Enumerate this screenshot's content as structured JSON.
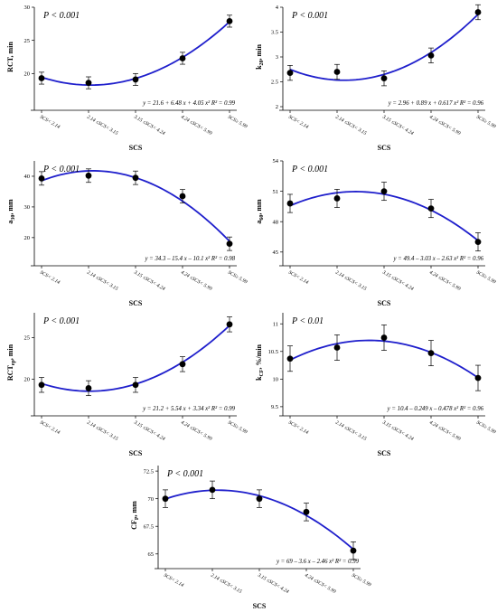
{
  "colors": {
    "fit_line": "#1f1fcc",
    "points": "#000000",
    "axis": "#000000"
  },
  "chart_data": [
    {
      "type": "scatter",
      "fit": "quadratic",
      "ylabel": "RCT, min",
      "xlabel": "SCS",
      "categories": [
        "SCS< 2.14",
        "2.14 ≤SCS< 3.15",
        "3.15 ≤SCS< 4.24",
        "4.24 ≤SCS< 5.99",
        "SCS≥ 5.99"
      ],
      "values": [
        19.3,
        18.6,
        19.1,
        22.3,
        27.9
      ],
      "errors": [
        0.9,
        0.9,
        0.9,
        0.9,
        0.9
      ],
      "fit_coeffs": [
        21.6,
        6.48,
        4.05
      ],
      "ylim": [
        15,
        30
      ],
      "yticks": [
        20,
        25,
        30
      ],
      "p_value": "P < 0.001",
      "equation": "y = 21.6 + 6.48 x + 4.05 x² R² = 0.99"
    },
    {
      "type": "scatter",
      "fit": "quadratic",
      "ylabel": "k20, min",
      "xlabel": "SCS",
      "categories": [
        "SCS< 2.14",
        "2.14 ≤SCS< 3.15",
        "3.15 ≤SCS< 4.24",
        "4.24 ≤SCS< 5.99",
        "SCS≥ 5.99"
      ],
      "values": [
        2.68,
        2.7,
        2.57,
        3.03,
        3.9
      ],
      "errors": [
        0.15,
        0.15,
        0.15,
        0.15,
        0.15
      ],
      "fit_coeffs": [
        2.96,
        0.89,
        0.617
      ],
      "ylim": [
        2.0,
        4.0
      ],
      "yticks": [
        2.0,
        2.5,
        3.0,
        3.5,
        4.0
      ],
      "p_value": "P < 0.001",
      "equation": "y = 2.96 + 0.89 x + 0.617 x² R² = 0.96"
    },
    {
      "type": "scatter",
      "fit": "quadratic",
      "ylabel": "a30, mm",
      "xlabel": "SCS",
      "categories": [
        "SCS< 2.14",
        "2.14 ≤SCS< 3.15",
        "3.15 ≤SCS< 4.24",
        "4.24 ≤SCS< 5.99",
        "SCS≥ 5.99"
      ],
      "values": [
        39.3,
        40.2,
        39.5,
        33.5,
        18.0
      ],
      "errors": [
        2.2,
        2.2,
        2.2,
        2.2,
        2.2
      ],
      "fit_coeffs": [
        34.3,
        -15.4,
        -10.1
      ],
      "ylim": [
        12,
        45
      ],
      "yticks": [
        20,
        30,
        40
      ],
      "p_value": "P < 0.001",
      "equation": "y = 34.3 – 15.4 x – 10.1 x² R² = 0.98"
    },
    {
      "type": "scatter",
      "fit": "quadratic",
      "ylabel": "a60, mm",
      "xlabel": "SCS",
      "categories": [
        "SCS< 2.14",
        "2.14 ≤SCS< 3.15",
        "3.15 ≤SCS< 4.24",
        "4.24 ≤SCS< 5.99",
        "SCS≥ 5.99"
      ],
      "values": [
        49.8,
        50.3,
        51.0,
        49.3,
        46.0
      ],
      "errors": [
        0.9,
        0.9,
        0.9,
        0.9,
        0.9
      ],
      "fit_coeffs": [
        49.4,
        -3.03,
        -2.63
      ],
      "ylim": [
        44,
        54
      ],
      "yticks": [
        45,
        48,
        51,
        54
      ],
      "p_value": "P < 0.001",
      "equation": "y = 49.4 – 3.03 x – 2.63 x² R² = 0.96"
    },
    {
      "type": "scatter",
      "fit": "quadratic",
      "ylabel": "RCTep, min",
      "xlabel": "SCS",
      "categories": [
        "SCS< 2.14",
        "2.14 ≤SCS< 3.15",
        "3.15 ≤SCS< 4.24",
        "4.24 ≤SCS< 5.99",
        "SCS≥ 5.99"
      ],
      "values": [
        19.3,
        18.9,
        19.3,
        21.8,
        26.6
      ],
      "errors": [
        0.9,
        0.9,
        0.9,
        0.9,
        0.9
      ],
      "fit_coeffs": [
        21.2,
        5.54,
        3.34
      ],
      "ylim": [
        16,
        28
      ],
      "yticks": [
        20,
        25
      ],
      "p_value": "P < 0.001",
      "equation": "y = 21.2 + 5.54 x + 3.34 x² R² = 0.99"
    },
    {
      "type": "scatter",
      "fit": "quadratic",
      "ylabel": "kCF, %/min",
      "xlabel": "SCS",
      "categories": [
        "SCS< 2.14",
        "2.14 ≤SCS< 3.15",
        "3.15 ≤SCS< 4.24",
        "4.24 ≤SCS< 5.99",
        "SCS≥ 5.99"
      ],
      "values": [
        10.37,
        10.57,
        10.75,
        10.47,
        10.02
      ],
      "errors": [
        0.23,
        0.23,
        0.23,
        0.23,
        0.23
      ],
      "fit_coeffs": [
        10.4,
        -0.249,
        -0.478
      ],
      "ylim": [
        9.4,
        11.2
      ],
      "yticks": [
        9.5,
        10.0,
        10.5,
        11.0
      ],
      "p_value": "P < 0.01",
      "equation": "y = 10.4 – 0.249 x – 0.478 x² R² = 0.96"
    },
    {
      "type": "scatter",
      "fit": "quadratic",
      "ylabel": "CFP, mm",
      "xlabel": "SCS",
      "categories": [
        "SCS< 2.14",
        "2.14 ≤SCS< 3.15",
        "3.15 ≤SCS< 4.24",
        "4.24 ≤SCS< 5.99",
        "SCS≥ 5.99"
      ],
      "values": [
        70.0,
        70.8,
        70.0,
        68.8,
        65.3
      ],
      "errors": [
        0.8,
        0.8,
        0.8,
        0.8,
        0.8
      ],
      "fit_coeffs": [
        69.0,
        -3.6,
        -2.46
      ],
      "ylim": [
        64,
        73
      ],
      "yticks": [
        65.0,
        67.5,
        70.0,
        72.5
      ],
      "p_value": "P < 0.001",
      "equation": "y = 69 – 3.6 x – 2.46 x² R² = 0.99"
    }
  ]
}
